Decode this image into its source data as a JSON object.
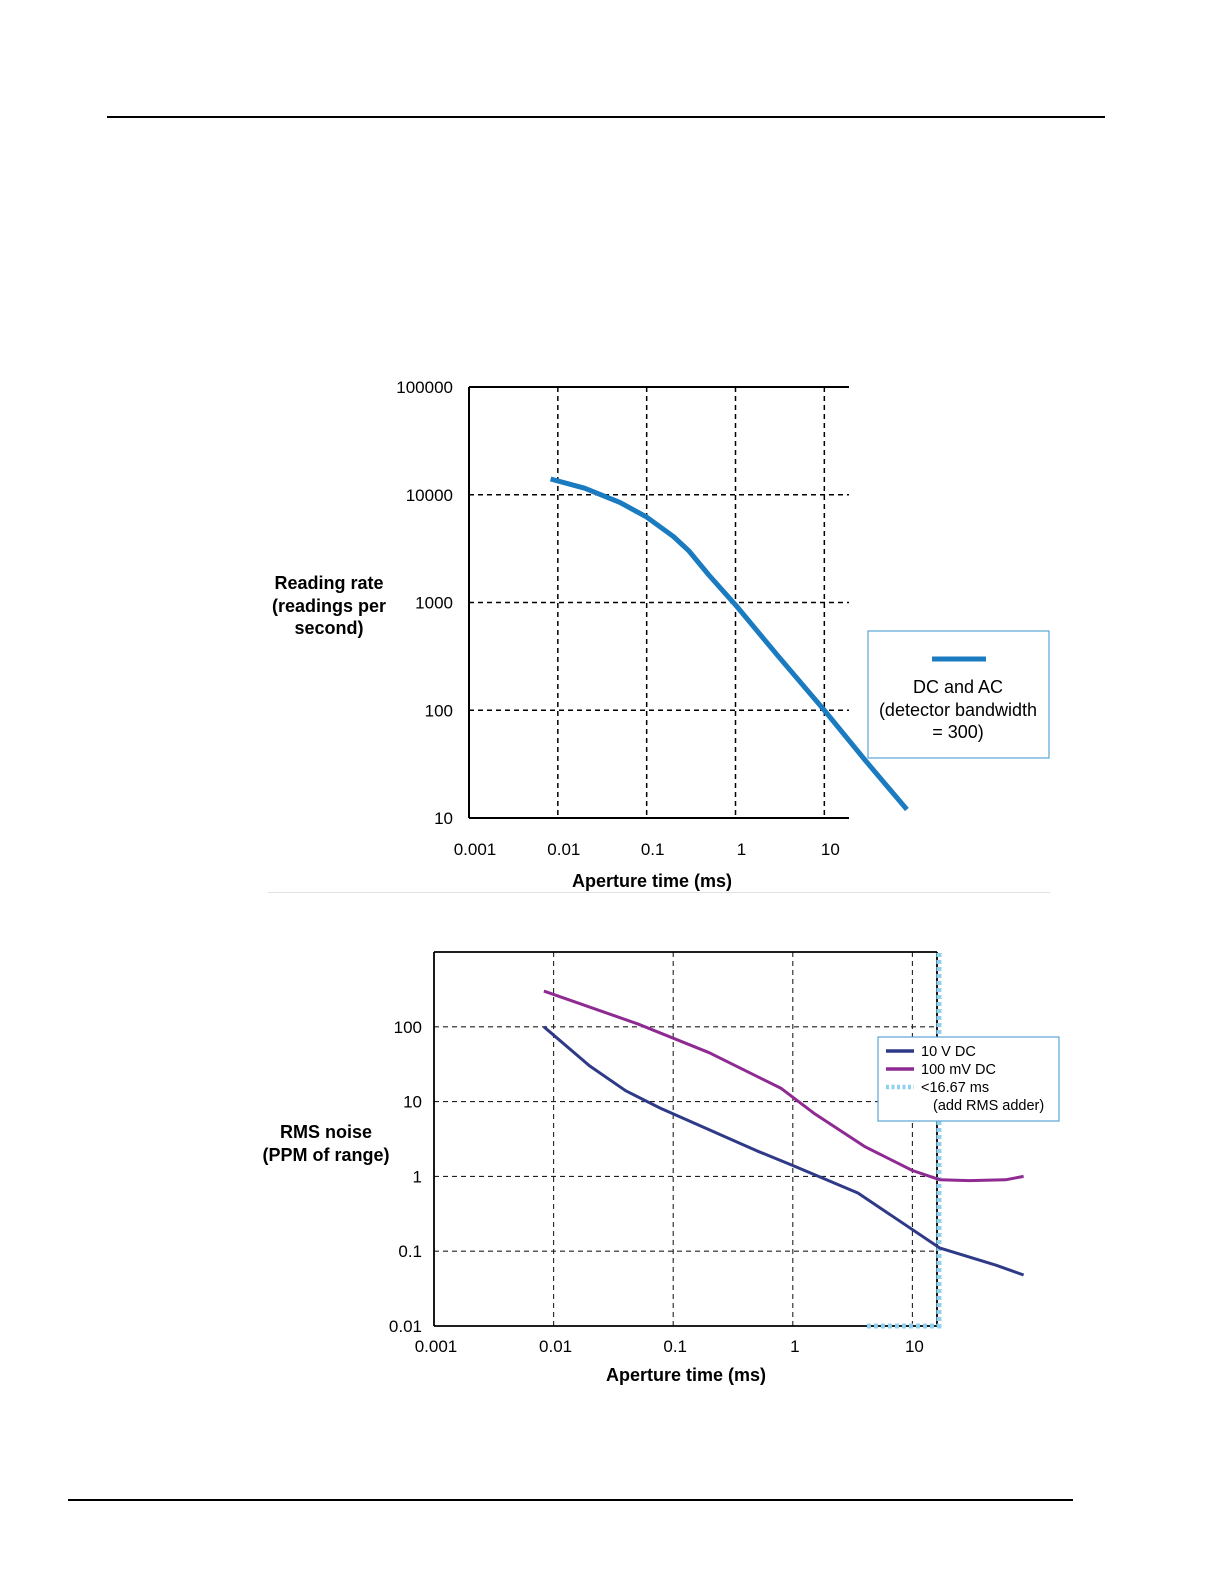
{
  "chart_data": [
    {
      "type": "line",
      "x_scale": "log",
      "y_scale": "log",
      "xlabel": "Aperture time (ms)",
      "ylabel_lines": [
        "Reading rate",
        "(readings per",
        "second)"
      ],
      "x_ticks": [
        "0.001",
        "0.01",
        "0.1",
        "1",
        "10"
      ],
      "y_ticks": [
        "10",
        "100",
        "1000",
        "10000",
        "100000"
      ],
      "xlim": [
        0.001,
        100
      ],
      "ylim": [
        10,
        100000
      ],
      "grid": true,
      "legend_position": "right",
      "series": [
        {
          "name_lines": [
            "DC and AC",
            "(detector bandwidth",
            "= 300)"
          ],
          "color": "#1b7bc0",
          "points": [
            [
              0.0083,
              14000
            ],
            [
              0.02,
              11500
            ],
            [
              0.05,
              8500
            ],
            [
              0.1,
              6200
            ],
            [
              0.2,
              4100
            ],
            [
              0.3,
              3000
            ],
            [
              0.5,
              1800
            ],
            [
              1,
              950
            ],
            [
              3,
              320
            ],
            [
              10,
              100
            ],
            [
              30,
              33
            ],
            [
              85,
              12
            ]
          ]
        }
      ]
    },
    {
      "type": "line",
      "x_scale": "log",
      "y_scale": "log",
      "xlabel": "Aperture time (ms)",
      "ylabel_lines": [
        "RMS noise",
        "(PPM of range)"
      ],
      "x_ticks": [
        "0.001",
        "0.01",
        "0.1",
        "1",
        "10"
      ],
      "y_ticks": [
        "0.01",
        "0.1",
        "1",
        "10",
        "100"
      ],
      "xlim": [
        0.001,
        100
      ],
      "ylim": [
        0.01,
        1000
      ],
      "grid": true,
      "legend_position": "right",
      "series": [
        {
          "name": "10 V DC",
          "color": "#2e3a87",
          "points": [
            [
              0.0083,
              100
            ],
            [
              0.02,
              30
            ],
            [
              0.04,
              14
            ],
            [
              0.08,
              8
            ],
            [
              0.2,
              4.2
            ],
            [
              0.5,
              2.2
            ],
            [
              1,
              1.4
            ],
            [
              3.5,
              0.6
            ],
            [
              17,
              0.11
            ],
            [
              50,
              0.065
            ],
            [
              85,
              0.048
            ]
          ]
        },
        {
          "name": "100 mV DC",
          "color": "#8e2a91",
          "points": [
            [
              0.0083,
              300
            ],
            [
              0.05,
              110
            ],
            [
              0.2,
              45
            ],
            [
              0.8,
              15
            ],
            [
              1.5,
              7
            ],
            [
              4,
              2.5
            ],
            [
              10,
              1.2
            ],
            [
              17,
              0.9
            ],
            [
              30,
              0.88
            ],
            [
              60,
              0.9
            ],
            [
              85,
              1.0
            ]
          ]
        },
        {
          "name_lines": [
            "<16.67 ms",
            "(add RMS adder)"
          ],
          "color": "#8fd0ee",
          "style": "dotted",
          "boundary_x": 16.67
        }
      ]
    }
  ]
}
